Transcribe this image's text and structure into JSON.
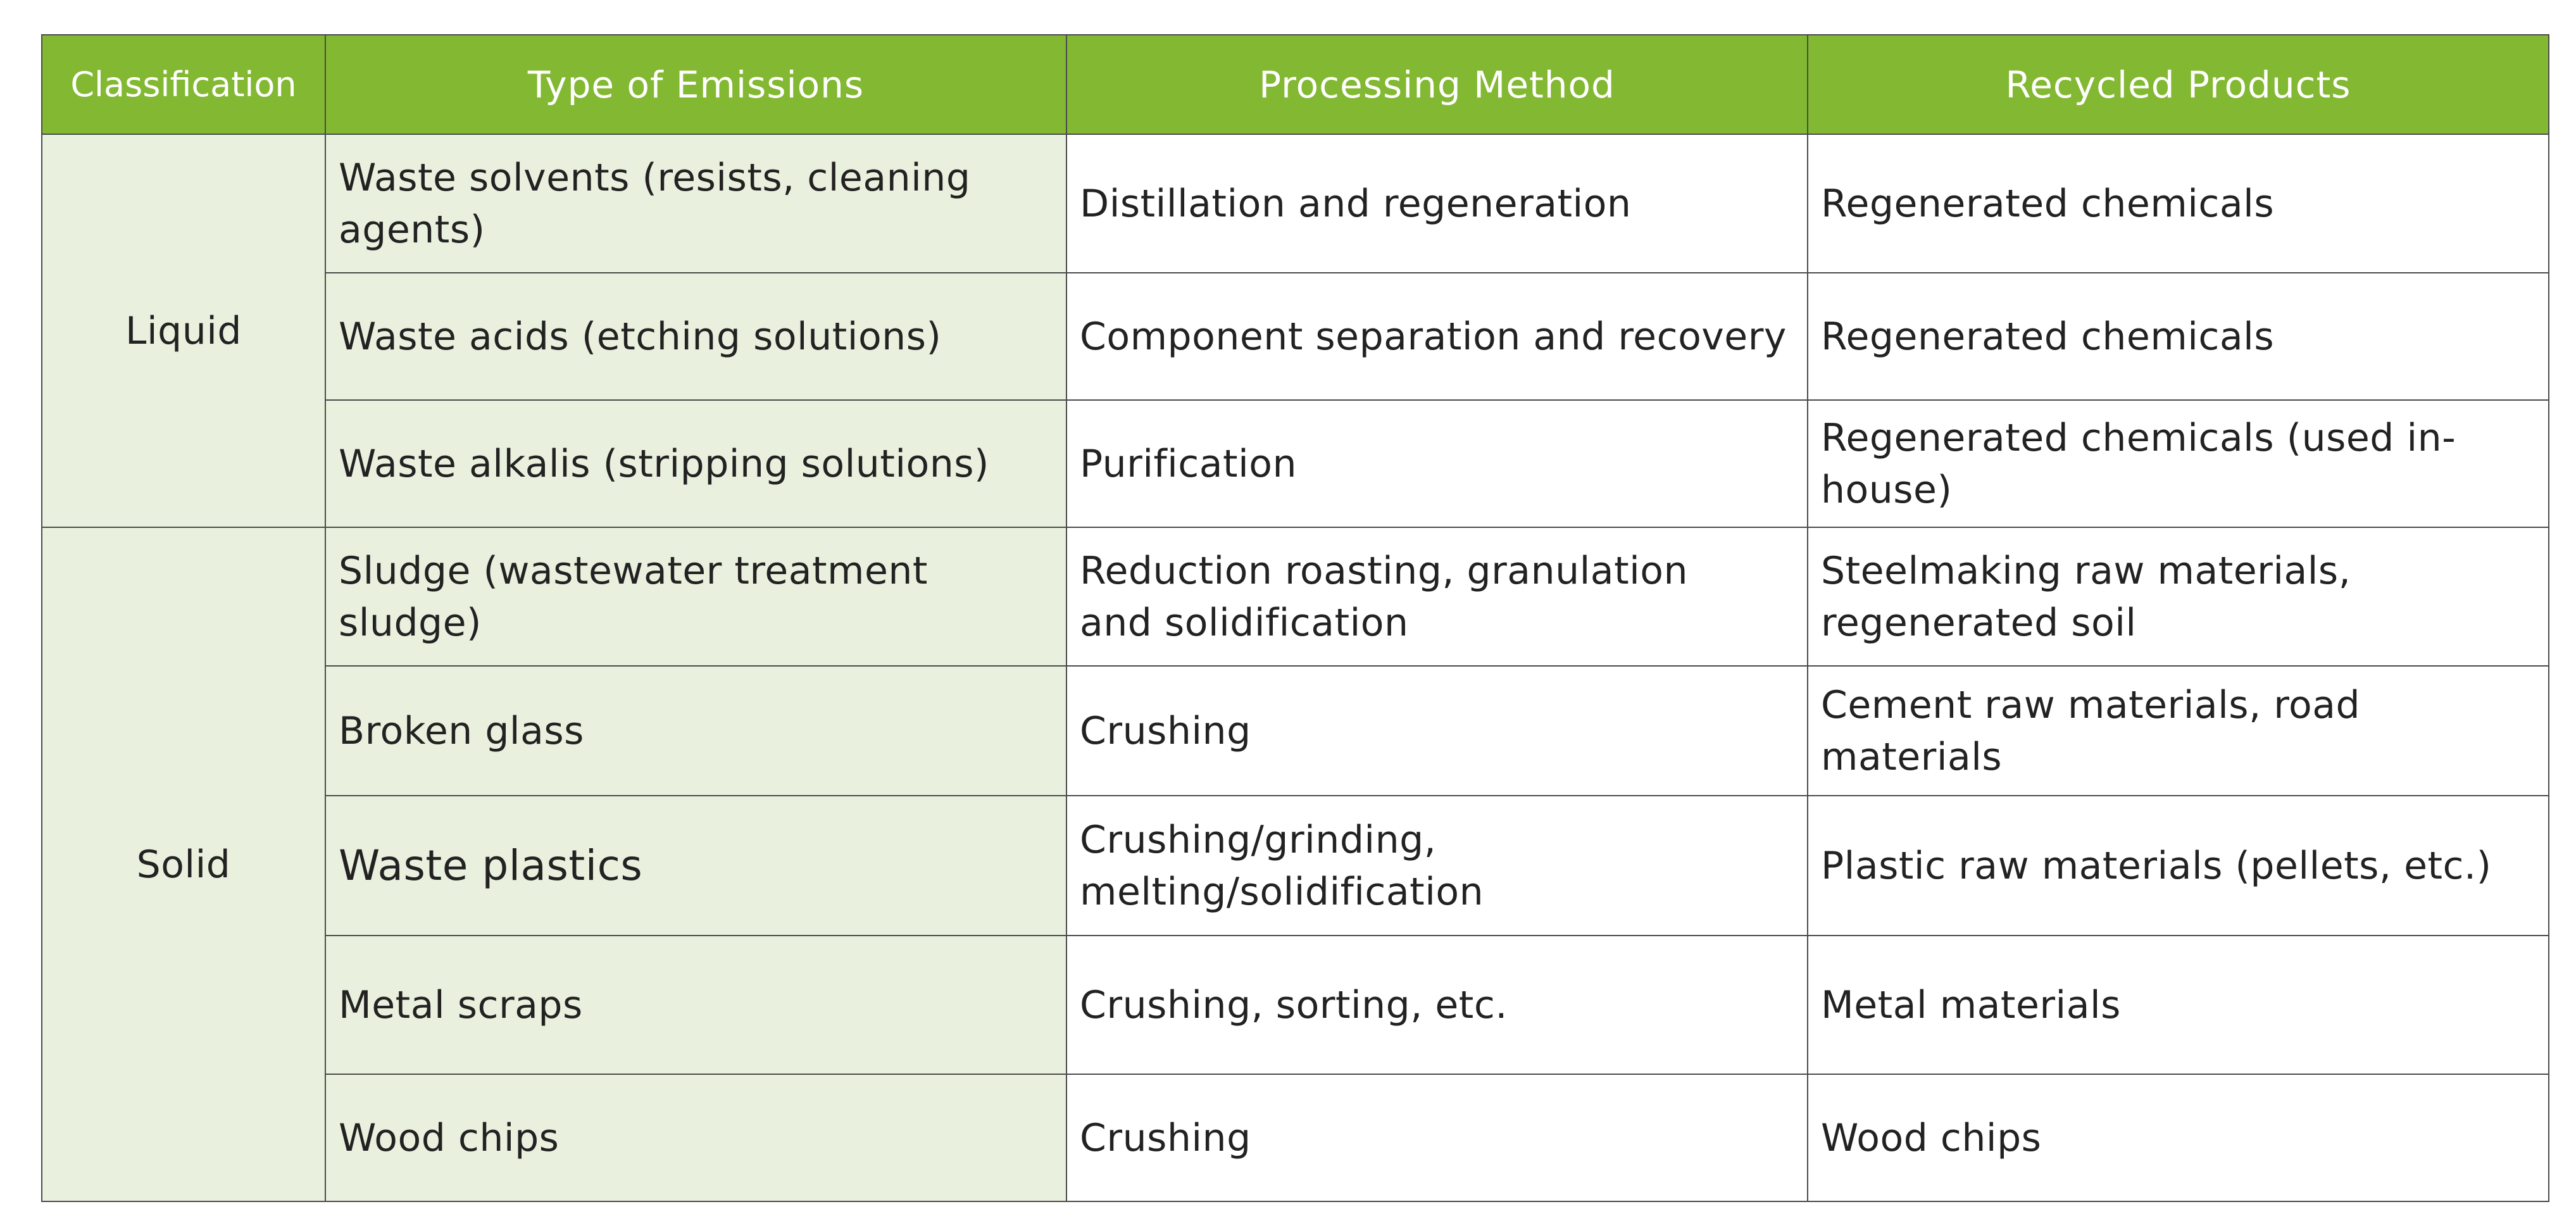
{
  "colors": {
    "header_bg": "#83b832",
    "header_text": "#ffffff",
    "light_green": "#e9f1de",
    "border": "#4a4a4a",
    "body_text": "#222222"
  },
  "table": {
    "headers": [
      "Classification",
      "Type of Emissions",
      "Processing Method",
      "Recycled Products"
    ],
    "groups": [
      {
        "classification": "Liquid",
        "rows": [
          {
            "emission": "Waste solvents (resists, cleaning agents)",
            "method": "Distillation and regeneration",
            "product": "Regenerated chemicals"
          },
          {
            "emission": "Waste acids (etching solutions)",
            "method": "Component separation and recovery",
            "product": "Regenerated chemicals"
          },
          {
            "emission": "Waste alkalis (stripping solutions)",
            "method": "Purification",
            "product": "Regenerated chemicals (used in-house)"
          }
        ]
      },
      {
        "classification": "Solid",
        "rows": [
          {
            "emission": "Sludge (wastewater treatment sludge)",
            "method": "Reduction roasting, granulation\nand solidification",
            "product": "Steelmaking raw materials,\nregenerated soil"
          },
          {
            "emission": "Broken glass",
            "method": "Crushing",
            "product": "Cement raw materials, road materials"
          },
          {
            "emission": "Waste plastics",
            "method": "Crushing/grinding,\nmelting/solidification",
            "product": "Plastic raw materials (pellets, etc.)"
          },
          {
            "emission": "Metal scraps",
            "method": "Crushing, sorting, etc.",
            "product": "Metal materials"
          },
          {
            "emission": "Wood chips",
            "method": "Crushing",
            "product": "Wood chips"
          }
        ]
      }
    ]
  }
}
